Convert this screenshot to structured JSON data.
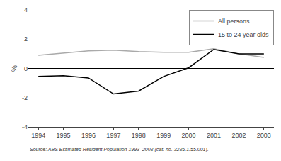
{
  "chart_data": {
    "type": "line",
    "ylabel": "%",
    "annotations": [
      "Source: ABS Estimated Resident Population 1993–2003 (cat. no. 3235.1.55.001)."
    ],
    "x": [
      1994,
      1995,
      1996,
      1997,
      1998,
      1999,
      2000,
      2001,
      2002,
      2003
    ],
    "series": [
      {
        "name": "All persons",
        "color": "#aaaaaa",
        "values": [
          0.9,
          1.05,
          1.2,
          1.25,
          1.15,
          1.1,
          1.1,
          1.35,
          1.0,
          0.75
        ]
      },
      {
        "name": "15 to 24 year olds",
        "color": "#000000",
        "values": [
          -0.55,
          -0.5,
          -0.65,
          -1.75,
          -1.55,
          -0.55,
          0.05,
          1.3,
          1.0,
          1.0
        ]
      }
    ],
    "xlim": [
      1993.6,
      2003.4
    ],
    "xticks": [
      1994,
      1995,
      1996,
      1997,
      1998,
      1999,
      2000,
      2001,
      2002,
      2003
    ],
    "ylim": [
      -4,
      4
    ],
    "yticks": [
      -4,
      -2,
      0,
      2,
      4
    ],
    "grid": false,
    "legend": "upper right",
    "background_color": "#ffffff"
  }
}
